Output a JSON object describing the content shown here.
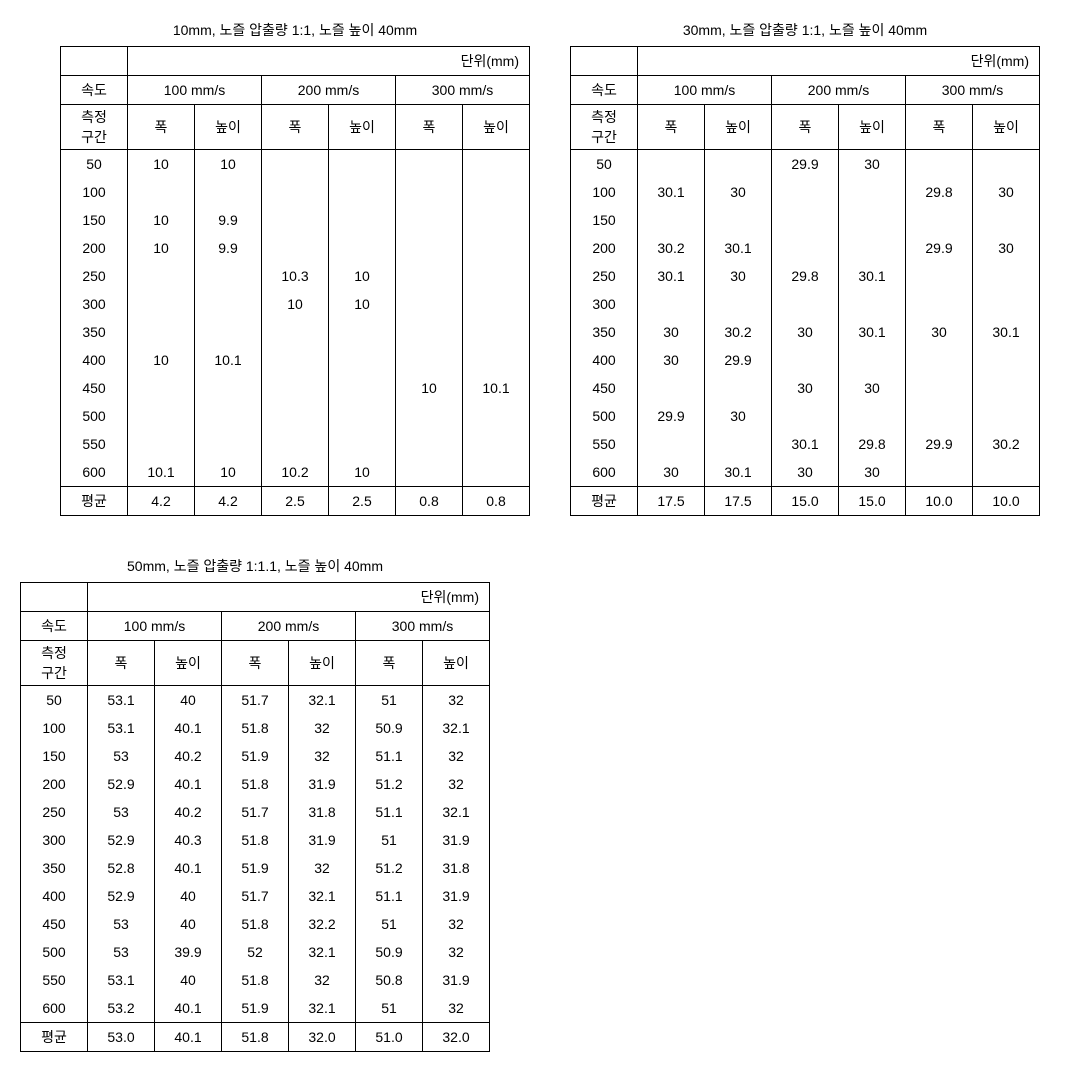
{
  "labels": {
    "unit": "단위(mm)",
    "speed": "속도",
    "section": "측정\n구간",
    "width": "폭",
    "height": "높이",
    "avg": "평균"
  },
  "speeds": [
    "100 mm/s",
    "200 mm/s",
    "300 mm/s"
  ],
  "intervals": [
    "50",
    "100",
    "150",
    "200",
    "250",
    "300",
    "350",
    "400",
    "450",
    "500",
    "550",
    "600"
  ],
  "tables": [
    {
      "title": "10mm, 노즐 압출량  1:1, 노즐 높이 40mm",
      "rows": [
        [
          "10",
          "10",
          "",
          "",
          "",
          ""
        ],
        [
          "",
          "",
          "",
          "",
          "",
          ""
        ],
        [
          "10",
          "9.9",
          "",
          "",
          "",
          ""
        ],
        [
          "10",
          "9.9",
          "",
          "",
          "",
          ""
        ],
        [
          "",
          "",
          "10.3",
          "10",
          "",
          ""
        ],
        [
          "",
          "",
          "10",
          "10",
          "",
          ""
        ],
        [
          "",
          "",
          "",
          "",
          "",
          ""
        ],
        [
          "10",
          "10.1",
          "",
          "",
          "",
          ""
        ],
        [
          "",
          "",
          "",
          "",
          "10",
          "10.1"
        ],
        [
          "",
          "",
          "",
          "",
          "",
          ""
        ],
        [
          "",
          "",
          "",
          "",
          "",
          ""
        ],
        [
          "10.1",
          "10",
          "10.2",
          "10",
          "",
          ""
        ]
      ],
      "avg": [
        "4.2",
        "4.2",
        "2.5",
        "2.5",
        "0.8",
        "0.8"
      ]
    },
    {
      "title": "30mm, 노즐 압출량 1:1, 노즐 높이 40mm",
      "rows": [
        [
          "",
          "",
          "29.9",
          "30",
          "",
          ""
        ],
        [
          "30.1",
          "30",
          "",
          "",
          "29.8",
          "30"
        ],
        [
          "",
          "",
          "",
          "",
          "",
          ""
        ],
        [
          "30.2",
          "30.1",
          "",
          "",
          "29.9",
          "30"
        ],
        [
          "30.1",
          "30",
          "29.8",
          "30.1",
          "",
          ""
        ],
        [
          "",
          "",
          "",
          "",
          "",
          ""
        ],
        [
          "30",
          "30.2",
          "30",
          "30.1",
          "30",
          "30.1"
        ],
        [
          "30",
          "29.9",
          "",
          "",
          "",
          ""
        ],
        [
          "",
          "",
          "30",
          "30",
          "",
          ""
        ],
        [
          "29.9",
          "30",
          "",
          "",
          "",
          ""
        ],
        [
          "",
          "",
          "30.1",
          "29.8",
          "29.9",
          "30.2"
        ],
        [
          "30",
          "30.1",
          "30",
          "30",
          "",
          ""
        ]
      ],
      "avg": [
        "17.5",
        "17.5",
        "15.0",
        "15.0",
        "10.0",
        "10.0"
      ]
    },
    {
      "title": "50mm, 노즐 압출량 1:1.1, 노즐 높이 40mm",
      "rows": [
        [
          "53.1",
          "40",
          "51.7",
          "32.1",
          "51",
          "32"
        ],
        [
          "53.1",
          "40.1",
          "51.8",
          "32",
          "50.9",
          "32.1"
        ],
        [
          "53",
          "40.2",
          "51.9",
          "32",
          "51.1",
          "32"
        ],
        [
          "52.9",
          "40.1",
          "51.8",
          "31.9",
          "51.2",
          "32"
        ],
        [
          "53",
          "40.2",
          "51.7",
          "31.8",
          "51.1",
          "32.1"
        ],
        [
          "52.9",
          "40.3",
          "51.8",
          "31.9",
          "51",
          "31.9"
        ],
        [
          "52.8",
          "40.1",
          "51.9",
          "32",
          "51.2",
          "31.8"
        ],
        [
          "52.9",
          "40",
          "51.7",
          "32.1",
          "51.1",
          "31.9"
        ],
        [
          "53",
          "40",
          "51.8",
          "32.2",
          "51",
          "32"
        ],
        [
          "53",
          "39.9",
          "52",
          "32.1",
          "50.9",
          "32"
        ],
        [
          "53.1",
          "40",
          "51.8",
          "32",
          "50.8",
          "31.9"
        ],
        [
          "53.2",
          "40.1",
          "51.9",
          "32.1",
          "51",
          "32"
        ]
      ],
      "avg": [
        "53.0",
        "40.1",
        "51.8",
        "32.0",
        "51.0",
        "32.0"
      ]
    }
  ]
}
